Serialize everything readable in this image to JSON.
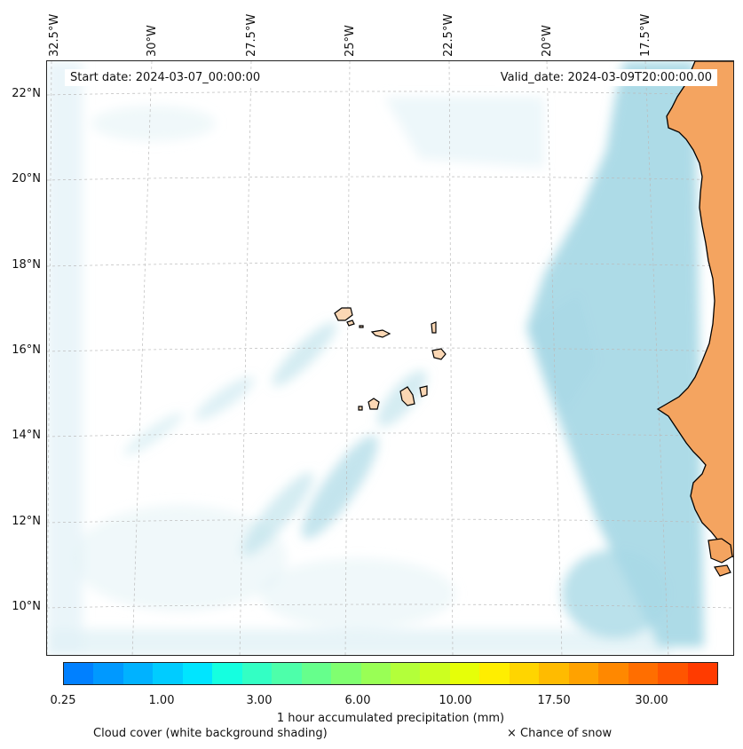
{
  "map": {
    "start_date": "Start date: 2024-03-07_00:00:00",
    "valid_date": "Valid_date: 2024-03-09T20:00:00.00",
    "longitude_labels": [
      "32.5°W",
      "30°W",
      "27.5°W",
      "25°W",
      "22.5°W",
      "20°W",
      "17.5°W"
    ],
    "latitude_labels": [
      "22°N",
      "20°N",
      "18°N",
      "16°N",
      "14°N",
      "12°N",
      "10°N"
    ],
    "colors": {
      "land": "#f4a460",
      "island": "#fbd7b4",
      "cloud": "#a9d9e6",
      "cloud_light": "#e1f1f6",
      "coastline": "#000000",
      "gridline": "#bbbbbb"
    }
  },
  "colorbar": {
    "label": "1 hour accumulated precipitation (mm)",
    "tick_labels": [
      "0.25",
      "1.00",
      "3.00",
      "6.00",
      "10.00",
      "17.50",
      "30.00"
    ],
    "colors": [
      "#0080ff",
      "#0099ff",
      "#00b2ff",
      "#00ccff",
      "#00e5ff",
      "#15ffe0",
      "#33ffc4",
      "#4dffaa",
      "#66ff8c",
      "#80ff70",
      "#99ff55",
      "#b3ff3a",
      "#ccff20",
      "#e6ff08",
      "#ffee00",
      "#ffd500",
      "#ffbb00",
      "#ffa200",
      "#ff8800",
      "#ff6e00",
      "#ff5500",
      "#ff3b00"
    ]
  },
  "legend": {
    "cloud_cover": "Cloud cover (white background shading)",
    "snow": "× Chance of snow"
  }
}
